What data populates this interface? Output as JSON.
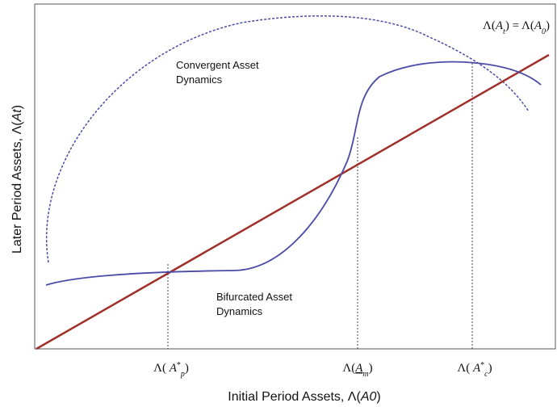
{
  "labels": [
    {
      "id": "identity",
      "x": 0,
      "segments": [
        {
          "t": "Λ("
        },
        {
          "t": "A",
          "s": "italic"
        },
        {
          "t": "t",
          "s": "sub"
        },
        {
          "t": ") = Λ("
        },
        {
          "t": "A",
          "s": "italic"
        },
        {
          "t": "0",
          "s": "sub"
        },
        {
          "t": ")"
        }
      ]
    },
    {
      "id": "y-axis-title",
      "segments": [
        {
          "t": "Later Period Assets, Λ("
        },
        {
          "t": "At",
          "s": "italic"
        },
        {
          "t": ")"
        }
      ]
    },
    {
      "id": "x-axis-title",
      "segments": [
        {
          "t": "Initial Period Assets, Λ("
        },
        {
          "t": "A0",
          "s": "italic"
        },
        {
          "t": ")"
        }
      ]
    },
    {
      "id": "tick-p",
      "segments": [
        {
          "t": "Λ( "
        },
        {
          "t": "A",
          "s": "italic"
        },
        {
          "t": "*",
          "s": "sup"
        },
        {
          "t": "p",
          "s": "sub"
        },
        {
          "t": ")"
        }
      ]
    },
    {
      "id": "tick-m",
      "segments": [
        {
          "t": "Λ("
        },
        {
          "t": "A",
          "s": "underline"
        },
        {
          "t": "m",
          "s": "sub"
        },
        {
          "t": ")"
        }
      ]
    },
    {
      "id": "tick-c",
      "segments": [
        {
          "t": "Λ( "
        },
        {
          "t": "A",
          "s": "italic"
        },
        {
          "t": "*",
          "s": "sup"
        },
        {
          "t": "c",
          "s": "sub"
        },
        {
          "t": ")"
        }
      ]
    }
  ],
  "annotations": {
    "convergent": [
      "Convergent Asset",
      "Dynamics"
    ],
    "bifurcated": [
      "Bifurcated Asset",
      "Dynamics"
    ]
  }
}
